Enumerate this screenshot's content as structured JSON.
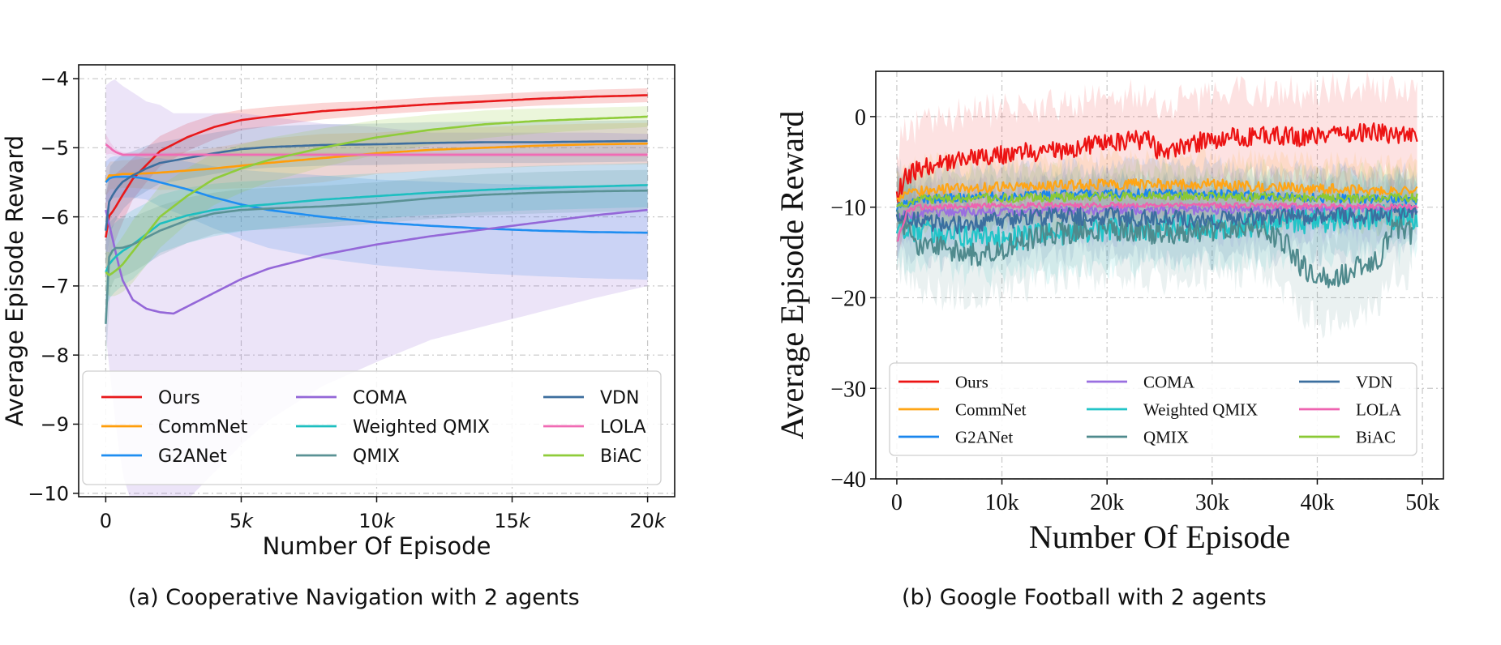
{
  "figure": {
    "caption_a": "(a)  Cooperative Navigation with 2 agents",
    "caption_b": "(b)  Google Football with 2 agents"
  },
  "chart_data": [
    {
      "type": "line",
      "title": "",
      "xlabel": "Number Of Episode",
      "ylabel": "Average Episode Reward",
      "xlim": [
        -1000,
        21000
      ],
      "ylim": [
        -10.05,
        -3.8
      ],
      "xticks": [
        0,
        5000,
        10000,
        15000,
        20000
      ],
      "xtick_labels": [
        {
          "num": "0",
          "sfx": ""
        },
        {
          "num": "5",
          "sfx": "k"
        },
        {
          "num": "10",
          "sfx": "k"
        },
        {
          "num": "15",
          "sfx": "k"
        },
        {
          "num": "20",
          "sfx": "k"
        }
      ],
      "yticks": [
        -4,
        -5,
        -6,
        -7,
        -8,
        -9,
        -10
      ],
      "ytick_labels": [
        "−4",
        "−5",
        "−6",
        "−7",
        "−8",
        "−9",
        "−10"
      ],
      "grid": true,
      "legend_placement": "bottom",
      "series": [
        {
          "name": "Ours",
          "color": "#e8191b",
          "x": [
            0,
            100,
            300,
            600,
            1000,
            1500,
            2000,
            3000,
            4000,
            5000,
            6000,
            8000,
            10000,
            12000,
            14000,
            16000,
            18000,
            20000
          ],
          "values": [
            -6.3,
            -6.0,
            -5.9,
            -5.7,
            -5.45,
            -5.25,
            -5.05,
            -4.85,
            -4.7,
            -4.6,
            -4.55,
            -4.47,
            -4.42,
            -4.37,
            -4.33,
            -4.29,
            -4.26,
            -4.24
          ],
          "band": [
            0.6,
            0.6,
            0.5,
            0.4,
            0.3,
            0.25,
            0.22,
            0.2,
            0.18,
            0.15,
            0.14,
            0.12,
            0.1,
            0.1,
            0.1,
            0.1,
            0.1,
            0.1
          ]
        },
        {
          "name": "CommNet",
          "color": "#ff9d0a",
          "x": [
            0,
            100,
            300,
            600,
            1000,
            2000,
            4000,
            6000,
            8000,
            10000,
            12000,
            14000,
            16000,
            18000,
            20000
          ],
          "values": [
            -5.5,
            -5.4,
            -5.4,
            -5.38,
            -5.38,
            -5.36,
            -5.3,
            -5.22,
            -5.15,
            -5.08,
            -5.03,
            -5.0,
            -4.97,
            -4.95,
            -4.94
          ],
          "band": [
            0.2,
            0.2,
            0.2,
            0.2,
            0.2,
            0.25,
            0.3,
            0.35,
            0.35,
            0.3,
            0.3,
            0.3,
            0.3,
            0.3,
            0.3
          ]
        },
        {
          "name": "G2ANet",
          "color": "#1f8ef1",
          "x": [
            0,
            100,
            300,
            600,
            1000,
            1500,
            2000,
            3000,
            4000,
            5000,
            6000,
            8000,
            10000,
            12000,
            14000,
            16000,
            18000,
            20000
          ],
          "values": [
            -5.5,
            -5.45,
            -5.42,
            -5.42,
            -5.42,
            -5.45,
            -5.5,
            -5.6,
            -5.72,
            -5.82,
            -5.9,
            -6.0,
            -6.08,
            -6.13,
            -6.17,
            -6.2,
            -6.22,
            -6.23
          ],
          "band": [
            0.3,
            0.3,
            0.3,
            0.3,
            0.3,
            0.3,
            0.35,
            0.4,
            0.45,
            0.5,
            0.55,
            0.6,
            0.62,
            0.64,
            0.65,
            0.66,
            0.67,
            0.68
          ]
        },
        {
          "name": "COMA",
          "color": "#9467d8",
          "x": [
            0,
            300,
            600,
            1000,
            1500,
            2000,
            2500,
            3000,
            4000,
            5000,
            6000,
            8000,
            10000,
            12000,
            14000,
            16000,
            18000,
            20000
          ],
          "values": [
            -5.9,
            -6.4,
            -6.9,
            -7.2,
            -7.33,
            -7.38,
            -7.4,
            -7.3,
            -7.1,
            -6.9,
            -6.75,
            -6.55,
            -6.4,
            -6.28,
            -6.18,
            -6.08,
            -5.98,
            -5.9
          ],
          "band": [
            1.8,
            2.4,
            2.8,
            3.0,
            3.0,
            3.0,
            2.9,
            2.8,
            2.6,
            2.4,
            2.2,
            1.9,
            1.7,
            1.5,
            1.4,
            1.3,
            1.2,
            1.1
          ]
        },
        {
          "name": "Weighted QMIX",
          "color": "#1dbfc0",
          "x": [
            0,
            100,
            300,
            600,
            1000,
            1500,
            2000,
            3000,
            4000,
            5000,
            6000,
            8000,
            10000,
            12000,
            14000,
            16000,
            18000,
            20000
          ],
          "values": [
            -6.8,
            -6.7,
            -6.6,
            -6.5,
            -6.4,
            -6.25,
            -6.1,
            -5.98,
            -5.9,
            -5.85,
            -5.82,
            -5.75,
            -5.7,
            -5.65,
            -5.61,
            -5.58,
            -5.56,
            -5.54
          ],
          "band": [
            0.5,
            0.5,
            0.5,
            0.5,
            0.5,
            0.45,
            0.42,
            0.4,
            0.38,
            0.36,
            0.35,
            0.34,
            0.33,
            0.32,
            0.32,
            0.32,
            0.32,
            0.32
          ]
        },
        {
          "name": "QMIX",
          "color": "#5a9295",
          "x": [
            0,
            100,
            300,
            600,
            1000,
            1500,
            2000,
            3000,
            4000,
            5000,
            6000,
            8000,
            10000,
            12000,
            14000,
            16000,
            18000,
            20000
          ],
          "values": [
            -7.55,
            -6.6,
            -6.45,
            -6.45,
            -6.4,
            -6.3,
            -6.2,
            -6.05,
            -5.95,
            -5.9,
            -5.88,
            -5.85,
            -5.8,
            -5.73,
            -5.68,
            -5.65,
            -5.63,
            -5.62
          ],
          "band": [
            0.6,
            0.5,
            0.45,
            0.42,
            0.4,
            0.38,
            0.36,
            0.33,
            0.3,
            0.3,
            0.3,
            0.3,
            0.3,
            0.3,
            0.3,
            0.3,
            0.3,
            0.3
          ]
        },
        {
          "name": "VDN",
          "color": "#3d6e9e",
          "x": [
            0,
            100,
            300,
            600,
            1000,
            1500,
            2000,
            3000,
            4000,
            5000,
            6000,
            8000,
            10000,
            12000,
            14000,
            16000,
            18000,
            20000
          ],
          "values": [
            -6.2,
            -5.8,
            -5.65,
            -5.5,
            -5.4,
            -5.3,
            -5.22,
            -5.15,
            -5.08,
            -5.02,
            -4.99,
            -4.96,
            -4.95,
            -4.93,
            -4.92,
            -4.92,
            -4.91,
            -4.9
          ],
          "band": [
            0.5,
            0.5,
            0.45,
            0.4,
            0.35,
            0.33,
            0.3,
            0.3,
            0.3,
            0.3,
            0.3,
            0.3,
            0.3,
            0.3,
            0.3,
            0.3,
            0.3,
            0.3
          ]
        },
        {
          "name": "LOLA",
          "color": "#f06bb4",
          "x": [
            0,
            100,
            300,
            600,
            1000,
            2000,
            4000,
            6000,
            8000,
            10000,
            12000,
            14000,
            16000,
            18000,
            20000
          ],
          "values": [
            -4.95,
            -4.98,
            -5.05,
            -5.1,
            -5.1,
            -5.1,
            -5.1,
            -5.1,
            -5.1,
            -5.1,
            -5.1,
            -5.1,
            -5.1,
            -5.1,
            -5.1
          ],
          "band": [
            0.15,
            0.1,
            0.05,
            0.03,
            0.03,
            0.03,
            0.03,
            0.03,
            0.03,
            0.03,
            0.03,
            0.03,
            0.03,
            0.03,
            0.03
          ]
        },
        {
          "name": "BiAC",
          "color": "#8fcc3a",
          "x": [
            0,
            100,
            300,
            600,
            1000,
            1500,
            2000,
            3000,
            4000,
            5000,
            6000,
            8000,
            10000,
            12000,
            14000,
            16000,
            18000,
            20000
          ],
          "values": [
            -6.8,
            -6.85,
            -6.8,
            -6.7,
            -6.5,
            -6.25,
            -6.0,
            -5.7,
            -5.45,
            -5.3,
            -5.18,
            -5.0,
            -4.85,
            -4.74,
            -4.66,
            -4.61,
            -4.58,
            -4.55
          ],
          "band": [
            0.3,
            0.3,
            0.35,
            0.4,
            0.45,
            0.45,
            0.45,
            0.4,
            0.38,
            0.35,
            0.32,
            0.28,
            0.25,
            0.22,
            0.2,
            0.18,
            0.16,
            0.15
          ]
        }
      ]
    },
    {
      "type": "line",
      "title": "",
      "xlabel": "Number Of Episode",
      "ylabel": "Average Episode Reward",
      "xlim": [
        -2000,
        52000
      ],
      "ylim": [
        -40,
        5
      ],
      "xticks": [
        0,
        10000,
        20000,
        30000,
        40000,
        50000
      ],
      "xtick_labels": [
        "0",
        "10k",
        "20k",
        "30k",
        "40k",
        "50k"
      ],
      "yticks": [
        0,
        -10,
        -20,
        -30,
        -40
      ],
      "ytick_labels": [
        "0",
        "−10",
        "−20",
        "−30",
        "−40"
      ],
      "grid": true,
      "legend_placement": "bottom",
      "series": [
        {
          "name": "Ours",
          "color": "#ec1313",
          "x": [
            0,
            500,
            1000,
            2000,
            3000,
            4000,
            5000,
            6000,
            8000,
            10000,
            12000,
            15000,
            18000,
            20000,
            22000,
            24000,
            25000,
            27000,
            30000,
            33000,
            35000,
            38000,
            40000,
            42000,
            44000,
            46000,
            48000,
            49500
          ],
          "values": [
            -9,
            -7.5,
            -6.5,
            -6,
            -5.5,
            -5.2,
            -5,
            -4.8,
            -4.5,
            -4.2,
            -4,
            -3.7,
            -3.3,
            -3,
            -2.7,
            -2.5,
            -4,
            -3.3,
            -2.5,
            -2.2,
            -2.2,
            -2.2,
            -2.2,
            -2,
            -1.8,
            -1.8,
            -2,
            -2
          ],
          "noise": 1.1,
          "band": 5
        },
        {
          "name": "CommNet",
          "color": "#ffa515",
          "x": [
            0,
            2000,
            5000,
            10000,
            20000,
            30000,
            40000,
            49500
          ],
          "values": [
            -9,
            -8.3,
            -8,
            -7.8,
            -7.5,
            -7.5,
            -8,
            -8.2
          ],
          "noise": 0.6,
          "band": 3
        },
        {
          "name": "G2ANet",
          "color": "#1a86ee",
          "x": [
            0,
            2000,
            5000,
            10000,
            20000,
            30000,
            40000,
            49500
          ],
          "values": [
            -10,
            -9.2,
            -9,
            -8.8,
            -8.5,
            -8.5,
            -9,
            -9.2
          ],
          "noise": 0.5,
          "band": 3
        },
        {
          "name": "COMA",
          "color": "#9a6fe0",
          "x": [
            0,
            2000,
            5000,
            10000,
            20000,
            30000,
            40000,
            49500
          ],
          "values": [
            -11,
            -10.7,
            -10.5,
            -10.5,
            -10.3,
            -10.3,
            -10.2,
            -10.2
          ],
          "noise": 0.5,
          "band": 3
        },
        {
          "name": "Weighted QMIX",
          "color": "#22c4c8",
          "x": [
            0,
            2000,
            5000,
            8000,
            12000,
            16000,
            20000,
            25000,
            30000,
            35000,
            40000,
            45000,
            49500
          ],
          "values": [
            -12,
            -12.5,
            -13,
            -13.5,
            -13.3,
            -12.8,
            -12.5,
            -12.3,
            -12.2,
            -11.8,
            -11.5,
            -11.2,
            -11
          ],
          "noise": 1.4,
          "band": 4
        },
        {
          "name": "QMIX",
          "color": "#4f8a8d",
          "x": [
            0,
            2000,
            4000,
            6000,
            8000,
            10000,
            14000,
            18000,
            22000,
            26000,
            30000,
            35000,
            37000,
            38500,
            40000,
            42000,
            44000,
            46000,
            47000,
            48000,
            49000
          ],
          "values": [
            -11,
            -14,
            -14.5,
            -15,
            -15.5,
            -14.5,
            -13,
            -12.5,
            -12.5,
            -13,
            -12.5,
            -12.5,
            -14,
            -16.5,
            -17.5,
            -17.8,
            -16.5,
            -15.5,
            -12.5,
            -12,
            -13
          ],
          "noise": 1.3,
          "band": 5
        },
        {
          "name": "VDN",
          "color": "#3c6f9f",
          "x": [
            0,
            2000,
            5000,
            10000,
            15000,
            20000,
            25000,
            30000,
            35000,
            40000,
            45000,
            49500
          ],
          "values": [
            -10.5,
            -11.5,
            -12,
            -11.5,
            -11,
            -11,
            -11.3,
            -11.5,
            -11,
            -11,
            -10.8,
            -10.5
          ],
          "noise": 1.0,
          "band": 4
        },
        {
          "name": "LOLA",
          "color": "#ee63b0",
          "x": [
            0,
            1000,
            2000,
            5000,
            10000,
            20000,
            30000,
            40000,
            49500
          ],
          "values": [
            -14,
            -10.5,
            -10,
            -10,
            -9.8,
            -9.8,
            -9.8,
            -9.9,
            -10
          ],
          "noise": 0.3,
          "band": 1.5
        },
        {
          "name": "BiAC",
          "color": "#8ac934",
          "x": [
            0,
            2000,
            5000,
            10000,
            20000,
            30000,
            40000,
            49500
          ],
          "values": [
            -10,
            -9.2,
            -9,
            -9,
            -8.8,
            -8.8,
            -9,
            -9
          ],
          "noise": 0.5,
          "band": 3
        }
      ]
    }
  ]
}
